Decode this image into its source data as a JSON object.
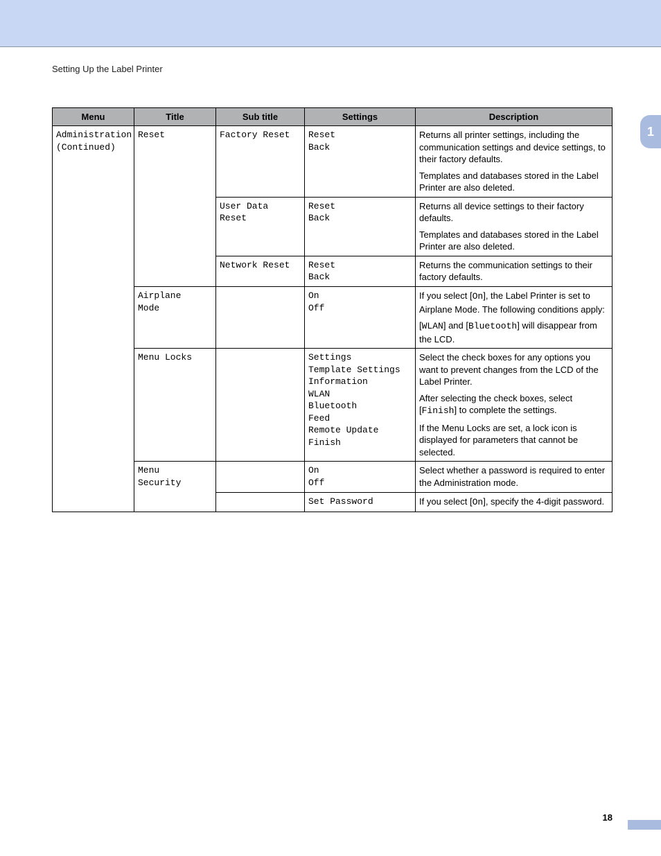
{
  "banner_color": "#c8d7f4",
  "side_tab": {
    "label": "1",
    "bg": "#a9bce0"
  },
  "section_title": "Setting Up the Label Printer",
  "headers": {
    "menu": "Menu",
    "title": "Title",
    "subtitle": "Sub title",
    "settings": "Settings",
    "description": "Description"
  },
  "rows": {
    "menu_col": "Administration\n(Continued)",
    "r1": {
      "title": "Reset",
      "subtitle": "Factory Reset",
      "settings": "Reset\nBack",
      "desc_p1": "Returns all printer settings, including the communication settings and device settings, to their factory defaults.",
      "desc_p2": "Templates and databases stored in the Label Printer are also deleted."
    },
    "r2": {
      "subtitle": "User Data\nReset",
      "settings": "Reset\nBack",
      "desc_p1": "Returns all device settings to their factory defaults.",
      "desc_p2": "Templates and databases stored in the Label Printer are also deleted."
    },
    "r3": {
      "subtitle": "Network Reset",
      "settings": "Reset\nBack",
      "desc_p1": "Returns the communication settings to their factory defaults."
    },
    "r4": {
      "title": "Airplane\nMode",
      "settings": "On\nOff",
      "desc_pre": "If you select [",
      "desc_code1": "On",
      "desc_mid1": "], the Label Printer is set to Airplane Mode.  The following conditions apply:",
      "desc_lb": "[",
      "desc_code2": "WLAN",
      "desc_and": "] and [",
      "desc_code3": "Bluetooth",
      "desc_tail": "] will disappear from the LCD."
    },
    "r5": {
      "title": "Menu Locks",
      "settings": "Settings\nTemplate Settings\nInformation\nWLAN\nBluetooth\nFeed\nRemote Update\nFinish",
      "desc_p1": "Select the check boxes for any options you want to prevent changes from the LCD of the Label Printer.",
      "desc_p2a": "After selecting the check boxes, select [",
      "desc_p2code": "Finish",
      "desc_p2b": "] to complete the settings.",
      "desc_p3": "If the Menu Locks are set, a lock icon is displayed for parameters that cannot be selected."
    },
    "r6": {
      "title": "Menu\nSecurity",
      "settings": "On\nOff",
      "desc_p1": "Select whether a password is required to enter the Administration mode."
    },
    "r7": {
      "settings": "Set Password",
      "desc_pre": "If you select [",
      "desc_code": "On",
      "desc_post": "], specify the 4-digit password."
    }
  },
  "page_number": "18"
}
